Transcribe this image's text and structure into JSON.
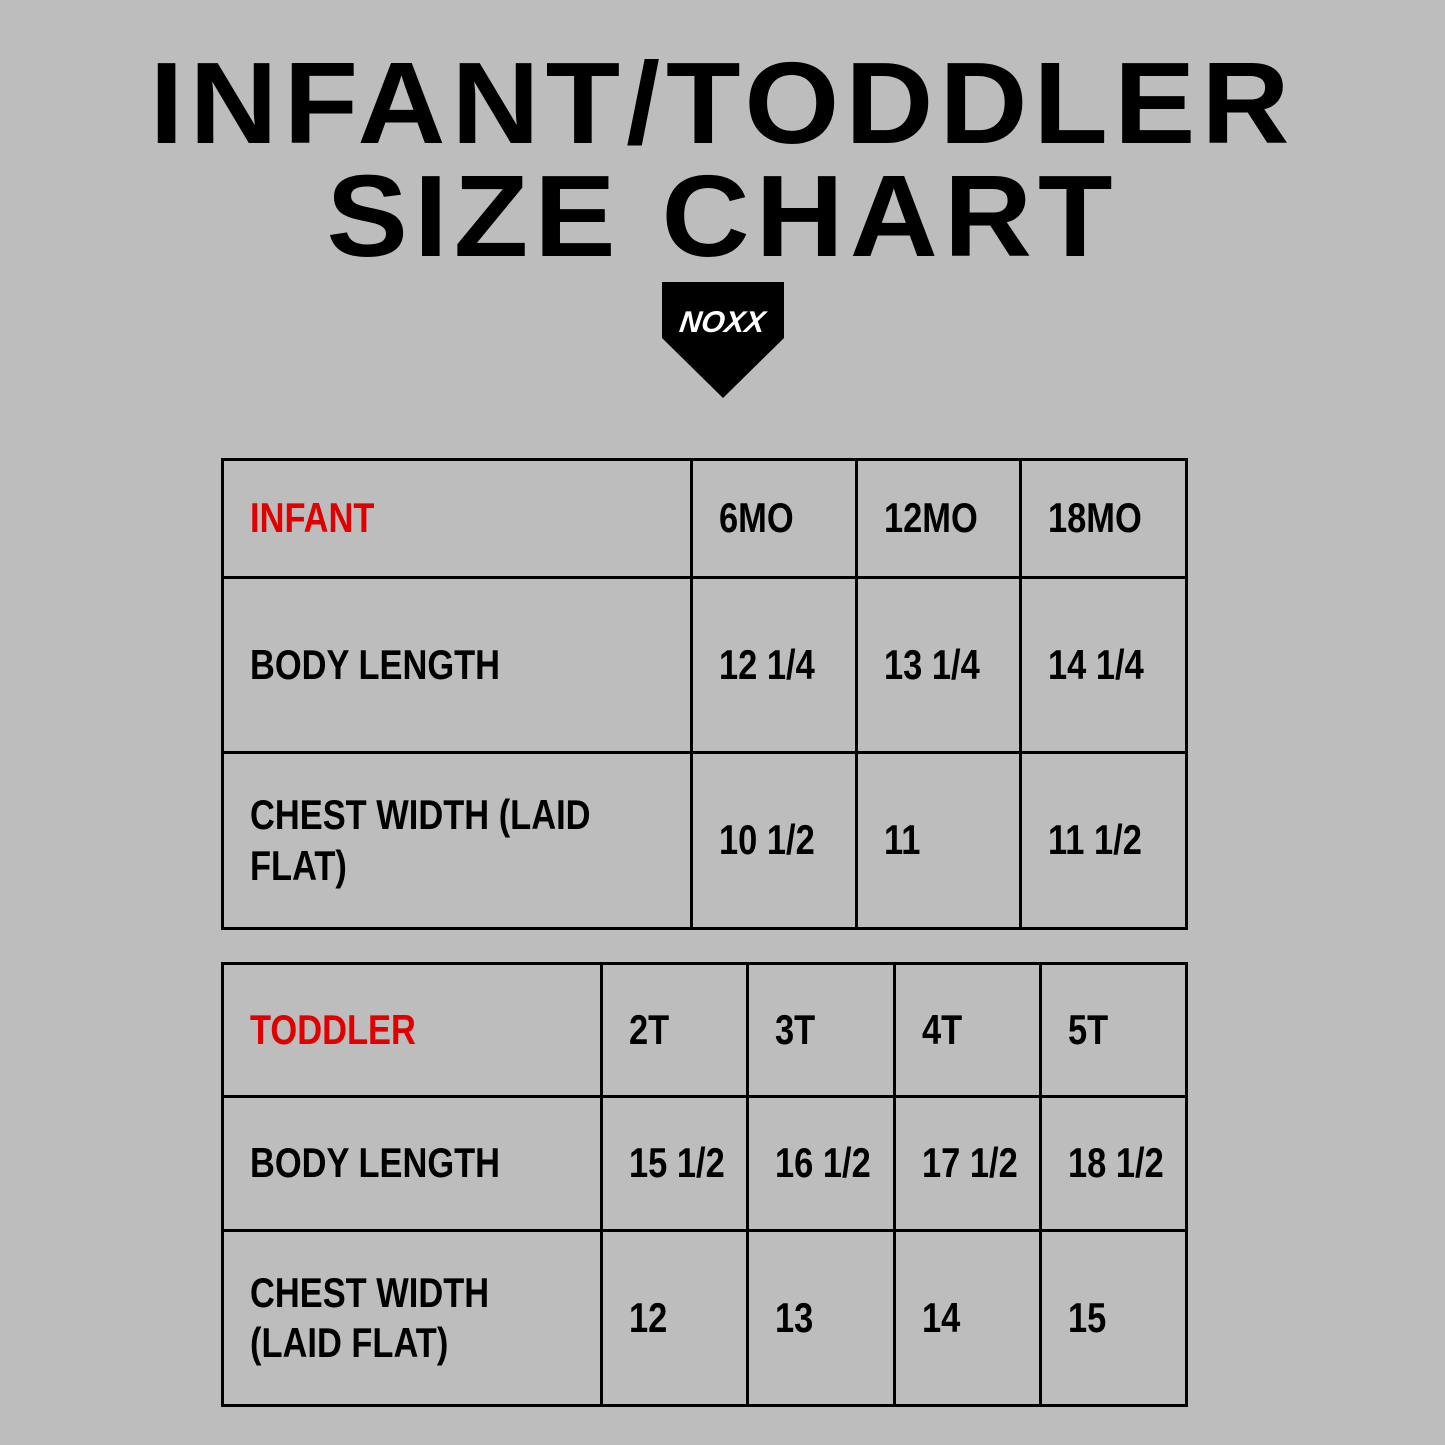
{
  "title": {
    "line1": "INFANT/TODDLER",
    "line2": "SIZE CHART"
  },
  "logo": {
    "text": "NOXX"
  },
  "colors": {
    "background": "#bdbdbd",
    "accent": "#e00000",
    "text": "#000000"
  },
  "infant": {
    "header": [
      "INFANT",
      "6MO",
      "12MO",
      "18MO"
    ],
    "rows": [
      [
        "BODY LENGTH",
        "12 1/4",
        "13 1/4",
        "14 1/4"
      ],
      [
        "CHEST WIDTH (LAID FLAT)",
        "10 1/2",
        "11",
        "11 1/2"
      ]
    ]
  },
  "toddler": {
    "header": [
      "TODDLER",
      "2T",
      "3T",
      "4T",
      "5T"
    ],
    "rows": [
      [
        "BODY LENGTH",
        "15 1/2",
        "16 1/2",
        "17 1/2",
        "18 1/2"
      ],
      [
        "CHEST WIDTH (LAID FLAT)",
        "12",
        "13",
        "14",
        "15"
      ]
    ]
  }
}
